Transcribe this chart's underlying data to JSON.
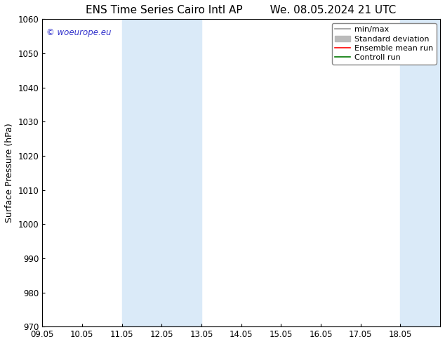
{
  "title_left": "ENS Time Series Cairo Intl AP",
  "title_right": "We. 08.05.2024 21 UTC",
  "ylabel": "Surface Pressure (hPa)",
  "xlim": [
    0,
    10
  ],
  "ylim": [
    970,
    1060
  ],
  "yticks": [
    970,
    980,
    990,
    1000,
    1010,
    1020,
    1030,
    1040,
    1050,
    1060
  ],
  "xtick_labels": [
    "09.05",
    "10.05",
    "11.05",
    "12.05",
    "13.05",
    "14.05",
    "15.05",
    "16.05",
    "17.05",
    "18.05"
  ],
  "shaded_bands": [
    {
      "x_start": 2.0,
      "x_end": 4.0,
      "color": "#daeaf8"
    },
    {
      "x_start": 9.0,
      "x_end": 10.0,
      "color": "#daeaf8"
    }
  ],
  "watermark_text": "© woeurope.eu",
  "watermark_color": "#3333cc",
  "background_color": "#ffffff",
  "legend_entries": [
    {
      "label": "min/max",
      "color": "#999999",
      "linestyle": "-",
      "linewidth": 1.2
    },
    {
      "label": "Standard deviation",
      "color": "#bbbbbb",
      "linestyle": "-",
      "linewidth": 5
    },
    {
      "label": "Ensemble mean run",
      "color": "#ff0000",
      "linestyle": "-",
      "linewidth": 1.2
    },
    {
      "label": "Controll run",
      "color": "#007700",
      "linestyle": "-",
      "linewidth": 1.2
    }
  ],
  "title_fontsize": 11,
  "axis_label_fontsize": 9,
  "tick_fontsize": 8.5,
  "legend_fontsize": 8
}
